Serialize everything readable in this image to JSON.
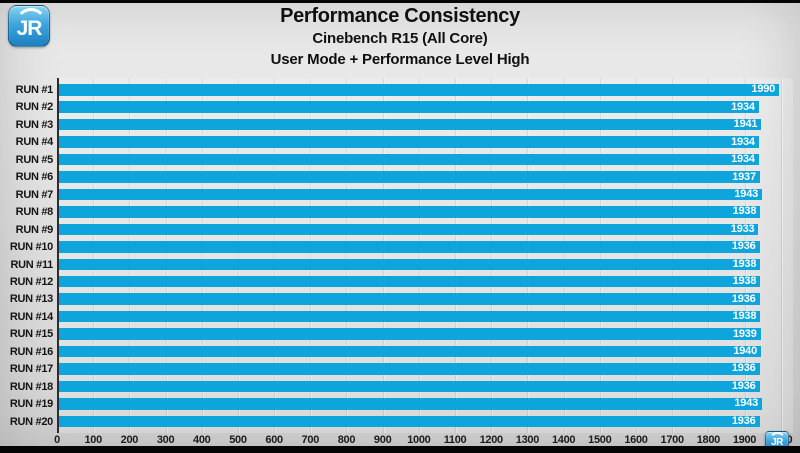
{
  "header": {
    "title": "Performance Consistency",
    "subtitle1": "Cinebench R15 (All Core)",
    "subtitle2": "User Mode + Performance Level High"
  },
  "logo": {
    "text": "JR"
  },
  "watermark": {
    "text": "JR"
  },
  "chart_data": {
    "type": "bar",
    "orientation": "horizontal",
    "title": "Performance Consistency",
    "subtitle": "Cinebench R15 (All Core)",
    "subtitle2": "User Mode + Performance Level High",
    "categories": [
      "RUN #1",
      "RUN #2",
      "RUN #3",
      "RUN #4",
      "RUN #5",
      "RUN #6",
      "RUN #7",
      "RUN #8",
      "RUN #9",
      "RUN #10",
      "RUN #11",
      "RUN #12",
      "RUN #13",
      "RUN #14",
      "RUN #15",
      "RUN #16",
      "RUN #17",
      "RUN #18",
      "RUN #19",
      "RUN #20"
    ],
    "values": [
      1990,
      1934,
      1941,
      1934,
      1934,
      1937,
      1943,
      1938,
      1933,
      1936,
      1938,
      1938,
      1936,
      1938,
      1939,
      1940,
      1936,
      1936,
      1943,
      1936
    ],
    "xlim": [
      0,
      2000
    ],
    "x_ticks": [
      0,
      100,
      200,
      300,
      400,
      500,
      600,
      700,
      800,
      900,
      1000,
      1100,
      1200,
      1300,
      1400,
      1500,
      1600,
      1700,
      1800,
      1900,
      2000
    ],
    "grid": true,
    "legend": false,
    "bar_color": "#0ea5dd",
    "value_label_color": "#ffffff",
    "label_color": "#141414"
  }
}
